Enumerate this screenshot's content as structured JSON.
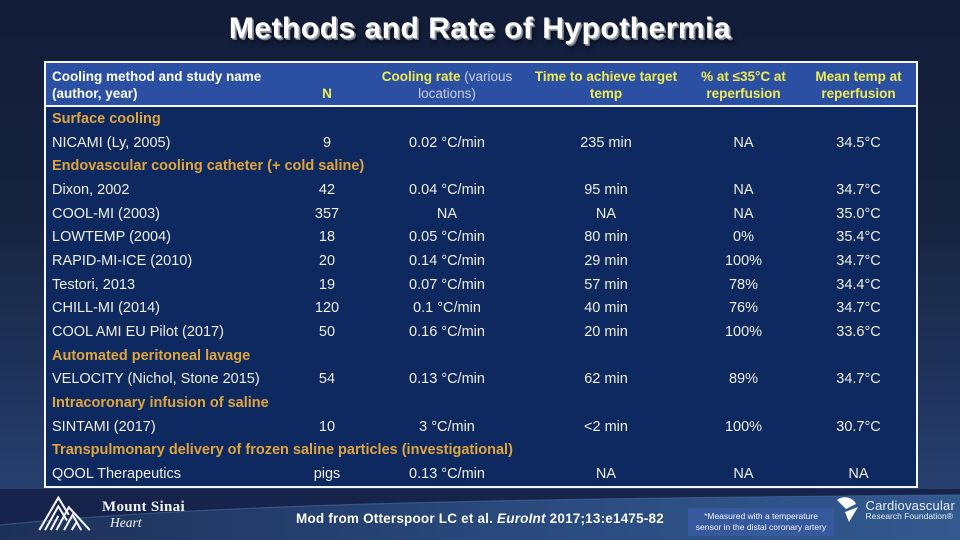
{
  "slide": {
    "title": "Methods and Rate of Hypothermia"
  },
  "table": {
    "header": {
      "col_method": "Cooling method and study name (author, year)",
      "col_n": "N",
      "col_rate_bold": "Cooling rate",
      "col_rate_note": " (various locations)",
      "col_time": "Time to achieve target temp",
      "col_pct": "% at ≤35°C at reperfusion",
      "col_mean": "Mean temp at reperfusion"
    },
    "rows": [
      {
        "type": "section",
        "label": "Surface cooling"
      },
      {
        "type": "study",
        "name": "NICAMI (Ly, 2005)",
        "n": "9",
        "rate": "0.02 °C/min",
        "time": "235 min",
        "pct": "NA",
        "mean": "34.5°C"
      },
      {
        "type": "section",
        "label": "Endovascular cooling catheter (+ cold saline)"
      },
      {
        "type": "study",
        "name": "Dixon, 2002",
        "n": "42",
        "rate": "0.04 °C/min",
        "time": "95 min",
        "pct": "NA",
        "mean": "34.7°C"
      },
      {
        "type": "study",
        "name": "COOL-MI (2003)",
        "n": "357",
        "rate": "NA",
        "time": "NA",
        "pct": "NA",
        "mean": "35.0°C"
      },
      {
        "type": "study",
        "name": "LOWTEMP (2004)",
        "n": "18",
        "rate": "0.05 °C/min",
        "time": "80 min",
        "pct": "0%",
        "mean": "35.4°C"
      },
      {
        "type": "study",
        "name": "RAPID-MI-ICE (2010)",
        "n": "20",
        "rate": "0.14 °C/min",
        "time": "29 min",
        "pct": "100%",
        "mean": "34.7°C"
      },
      {
        "type": "study",
        "name": "Testori, 2013",
        "n": "19",
        "rate": "0.07 °C/min",
        "time": "57 min",
        "pct": "78%",
        "mean": "34.4°C"
      },
      {
        "type": "study",
        "name": "CHILL-MI (2014)",
        "n": "120",
        "rate": "0.1 °C/min",
        "time": "40 min",
        "pct": "76%",
        "mean": "34.7°C"
      },
      {
        "type": "study",
        "name": "COOL AMI EU Pilot (2017)",
        "n": "50",
        "rate": "0.16 °C/min",
        "time": "20 min",
        "pct": "100%",
        "mean": "33.6°C"
      },
      {
        "type": "section",
        "label": "Automated peritoneal lavage"
      },
      {
        "type": "study",
        "name": "VELOCITY (Nichol, Stone 2015)",
        "n": "54",
        "rate": "0.13 °C/min",
        "time": "62 min",
        "pct": "89%",
        "mean": "34.7°C"
      },
      {
        "type": "section",
        "label": "Intracoronary infusion of saline"
      },
      {
        "type": "study",
        "name": "SINTAMI (2017)",
        "n": "10",
        "rate": "3 °C/min",
        "time": "<2 min",
        "pct": "100%",
        "mean": "30.7°C"
      },
      {
        "type": "section",
        "label": "Transpulmonary delivery of frozen saline particles (investigational)"
      },
      {
        "type": "study",
        "name": "QOOL Therapeutics",
        "n": "pigs",
        "rate": "0.13 °C/min",
        "time": "NA",
        "pct": "NA",
        "mean": "NA"
      }
    ]
  },
  "footer": {
    "citation_prefix": "Mod from Otterspoor LC et al. ",
    "citation_journal": "EuroInt",
    "citation_suffix": " 2017;13:e1475-82",
    "footnote": "*Measured with a temperature sensor in the distal coronary artery",
    "mount_sinai_line1": "Mount Sinai",
    "mount_sinai_line2": "Heart",
    "crf_line1": "Cardiovascular",
    "crf_line2": "Research Foundation®"
  },
  "colors": {
    "slide_bg_top": "#121c38",
    "slide_bg_bottom": "#2c4678",
    "table_bg": "#0d2960",
    "header_bg": "#2b4fa2",
    "header_yellow": "#f0ec55",
    "section_orange": "#e0a53c",
    "body_text": "#efeee1",
    "band_light_blue": "#33598f",
    "border_white": "#f5f6f2"
  }
}
